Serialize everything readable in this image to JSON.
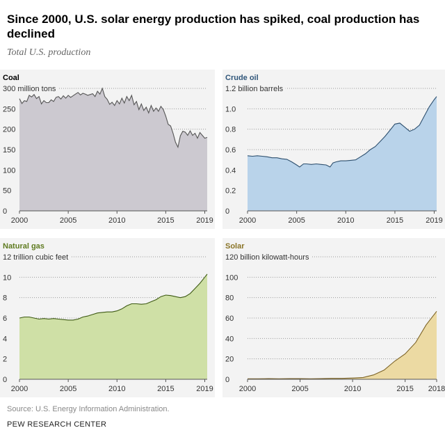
{
  "header": {
    "title": "Since 2000, U.S. solar energy production has spiked, coal production has declined",
    "subtitle": "Total U.S. production"
  },
  "footer": {
    "source": "Source: U.S. Energy Information Administration.",
    "org": "PEW RESEARCH CENTER"
  },
  "chart_data": [
    {
      "type": "area",
      "title": "Coal",
      "title_color": "#000000",
      "fill": "#ccc9d0",
      "stroke": "#555555",
      "unit_label": "300 million tons",
      "ylim": [
        0,
        300
      ],
      "yticks": [
        0,
        50,
        100,
        150,
        200,
        250
      ],
      "xlim": [
        2000,
        2019.25
      ],
      "xticks": [
        2000,
        2005,
        2010,
        2015,
        2019
      ],
      "x": [
        2000,
        2000.25,
        2000.5,
        2000.75,
        2001,
        2001.25,
        2001.5,
        2001.75,
        2002,
        2002.25,
        2002.5,
        2002.75,
        2003,
        2003.25,
        2003.5,
        2003.75,
        2004,
        2004.25,
        2004.5,
        2004.75,
        2005,
        2005.25,
        2005.5,
        2005.75,
        2006,
        2006.25,
        2006.5,
        2006.75,
        2007,
        2007.25,
        2007.5,
        2007.75,
        2008,
        2008.25,
        2008.5,
        2008.75,
        2009,
        2009.25,
        2009.5,
        2009.75,
        2010,
        2010.25,
        2010.5,
        2010.75,
        2011,
        2011.25,
        2011.5,
        2011.75,
        2012,
        2012.25,
        2012.5,
        2012.75,
        2013,
        2013.25,
        2013.5,
        2013.75,
        2014,
        2014.25,
        2014.5,
        2014.75,
        2015,
        2015.25,
        2015.5,
        2015.75,
        2016,
        2016.25,
        2016.5,
        2016.75,
        2017,
        2017.25,
        2017.5,
        2017.75,
        2018,
        2018.25,
        2018.5,
        2018.75,
        2019,
        2019.25
      ],
      "values": [
        275,
        263,
        270,
        268,
        283,
        279,
        285,
        275,
        280,
        262,
        270,
        265,
        265,
        272,
        268,
        278,
        280,
        274,
        282,
        276,
        283,
        278,
        282,
        286,
        290,
        284,
        288,
        286,
        283,
        285,
        287,
        280,
        293,
        286,
        300,
        280,
        273,
        261,
        266,
        258,
        270,
        262,
        276,
        264,
        280,
        270,
        283,
        260,
        268,
        248,
        262,
        246,
        254,
        240,
        258,
        244,
        252,
        244,
        256,
        248,
        232,
        212,
        208,
        190,
        168,
        156,
        184,
        195,
        193,
        185,
        196,
        185,
        190,
        178,
        192,
        185,
        178,
        180
      ]
    },
    {
      "type": "area",
      "title": "Crude oil",
      "title_color": "#30567a",
      "fill": "#b9d3ea",
      "stroke": "#2d4f6e",
      "unit_label": "1.2 billion barrels",
      "ylim": [
        0,
        1.2
      ],
      "yticks": [
        0,
        0.2,
        0.4,
        0.6,
        0.8,
        1.0
      ],
      "ytick_labels": [
        "0",
        "0.2",
        "0.4",
        "0.6",
        "0.8",
        "1.0"
      ],
      "xlim": [
        2000,
        2019.25
      ],
      "xticks": [
        2000,
        2005,
        2010,
        2015,
        2019
      ],
      "x": [
        2000,
        2000.5,
        2001,
        2001.5,
        2002,
        2002.5,
        2003,
        2003.5,
        2004,
        2004.5,
        2005,
        2005.3,
        2005.7,
        2006,
        2006.5,
        2007,
        2007.5,
        2008,
        2008.4,
        2008.7,
        2009,
        2009.5,
        2010,
        2010.5,
        2011,
        2011.5,
        2012,
        2012.5,
        2013,
        2013.5,
        2014,
        2014.5,
        2015,
        2015.5,
        2016,
        2016.5,
        2017,
        2017.5,
        2018,
        2018.5,
        2019,
        2019.25
      ],
      "values": [
        0.54,
        0.535,
        0.54,
        0.535,
        0.53,
        0.52,
        0.52,
        0.51,
        0.505,
        0.48,
        0.45,
        0.43,
        0.46,
        0.46,
        0.455,
        0.46,
        0.455,
        0.45,
        0.43,
        0.47,
        0.48,
        0.49,
        0.49,
        0.495,
        0.5,
        0.53,
        0.56,
        0.6,
        0.63,
        0.68,
        0.73,
        0.79,
        0.85,
        0.86,
        0.82,
        0.78,
        0.8,
        0.84,
        0.93,
        1.02,
        1.09,
        1.12
      ]
    },
    {
      "type": "area",
      "title": "Natural gas",
      "title_color": "#5e7a1f",
      "fill": "#cfe0a6",
      "stroke": "#3e5a14",
      "unit_label": "12 trillion cubic feet",
      "ylim": [
        0,
        12
      ],
      "yticks": [
        0,
        2,
        4,
        6,
        8,
        10
      ],
      "xlim": [
        2000,
        2019.25
      ],
      "xticks": [
        2000,
        2005,
        2010,
        2015,
        2019
      ],
      "x": [
        2000,
        2000.5,
        2001,
        2001.5,
        2002,
        2002.5,
        2003,
        2003.5,
        2004,
        2004.5,
        2005,
        2005.5,
        2006,
        2006.5,
        2007,
        2007.5,
        2008,
        2008.5,
        2009,
        2009.5,
        2010,
        2010.5,
        2011,
        2011.5,
        2012,
        2012.5,
        2013,
        2013.5,
        2014,
        2014.5,
        2015,
        2015.5,
        2016,
        2016.5,
        2017,
        2017.5,
        2018,
        2018.5,
        2019,
        2019.25
      ],
      "values": [
        6.0,
        6.1,
        6.1,
        6.0,
        5.9,
        5.95,
        5.9,
        5.95,
        5.9,
        5.85,
        5.8,
        5.8,
        5.9,
        6.1,
        6.2,
        6.35,
        6.5,
        6.55,
        6.6,
        6.6,
        6.7,
        6.9,
        7.2,
        7.4,
        7.4,
        7.35,
        7.4,
        7.6,
        7.8,
        8.1,
        8.25,
        8.2,
        8.1,
        8.0,
        8.1,
        8.4,
        8.9,
        9.4,
        10.0,
        10.3
      ]
    },
    {
      "type": "area",
      "title": "Solar",
      "title_color": "#8a7427",
      "fill": "#ecdaa3",
      "stroke": "#7d6428",
      "unit_label": "120 billion kilowatt-hours",
      "ylim": [
        0,
        120
      ],
      "yticks": [
        0,
        20,
        40,
        60,
        80,
        100
      ],
      "xlim": [
        2000,
        2018
      ],
      "xticks": [
        2000,
        2005,
        2010,
        2015,
        2018
      ],
      "x": [
        2000,
        2001,
        2002,
        2003,
        2004,
        2005,
        2006,
        2007,
        2008,
        2009,
        2010,
        2011,
        2012,
        2013,
        2014,
        2015,
        2016,
        2017,
        2018
      ],
      "values": [
        0.5,
        0.5,
        0.6,
        0.5,
        0.6,
        0.6,
        0.5,
        0.6,
        0.9,
        0.9,
        1.2,
        1.8,
        4.3,
        9.0,
        17.7,
        24.9,
        36.0,
        53.3,
        66.6
      ]
    }
  ]
}
